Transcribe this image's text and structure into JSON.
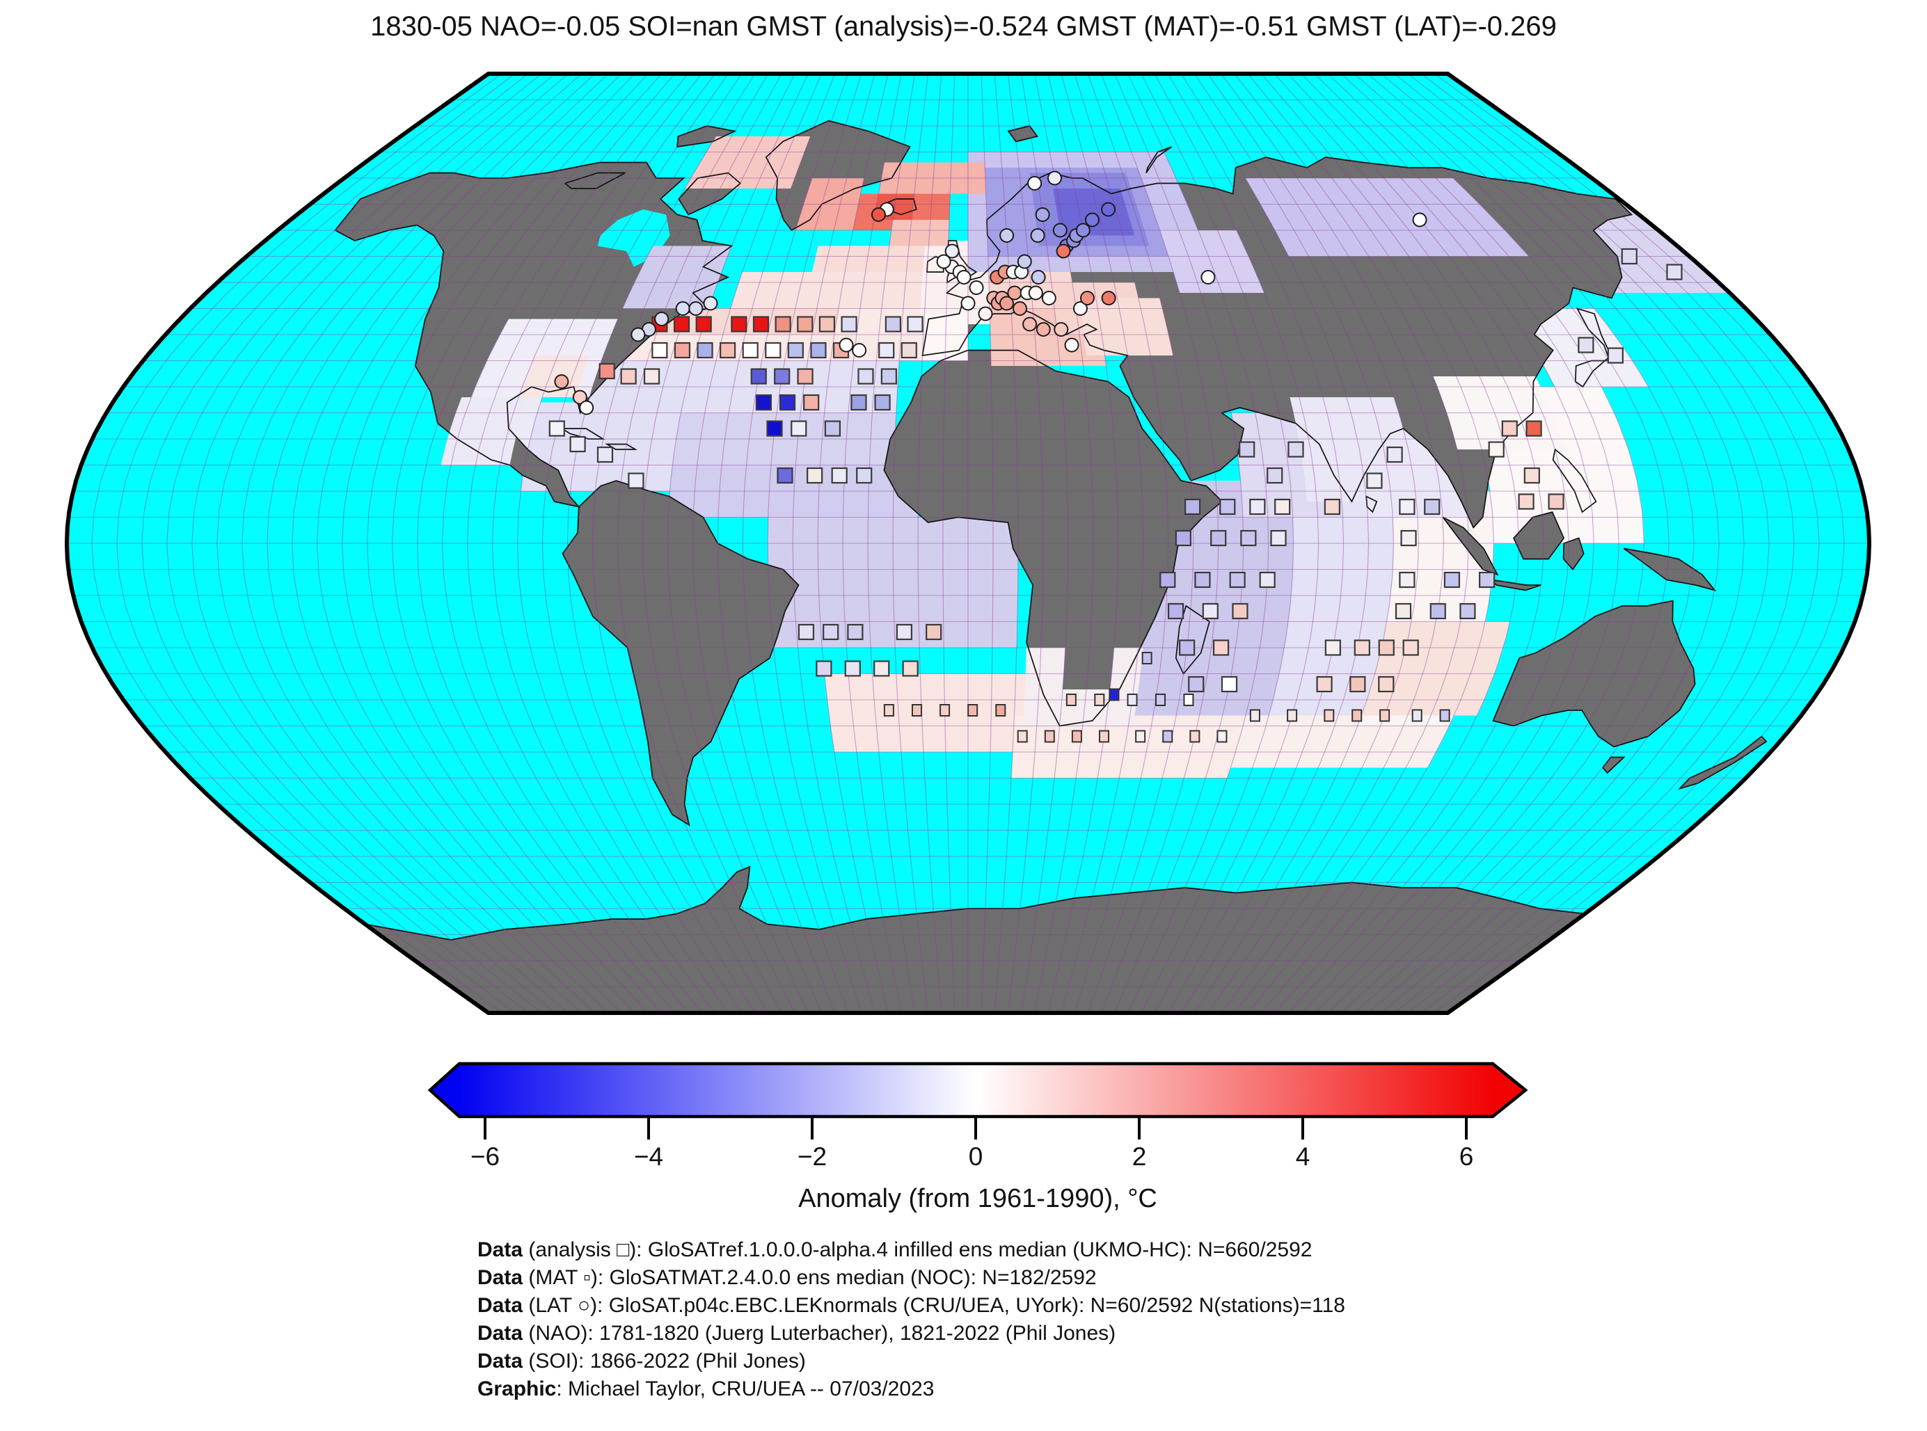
{
  "title": "1830-05 NAO=-0.05 SOI=nan GMST (analysis)=-0.524 GMST (MAT)=-0.51 GMST (LAT)=-0.269",
  "colorbar": {
    "label": "Anomaly (from 1961-1990), °C",
    "min": -6,
    "max": 6,
    "tick_labels": [
      "−6",
      "−4",
      "−2",
      "0",
      "2",
      "4",
      "6"
    ],
    "gradient": [
      "#0202f2",
      "#ffffff",
      "#f20202"
    ]
  },
  "credits": [
    {
      "bold": "Data",
      "rest": " (analysis □): GloSATref.1.0.0.0-alpha.4 infilled ens median (UKMO-HC): N=660/2592"
    },
    {
      "bold": "Data",
      "rest": " (MAT ▫): GloSATMAT.2.4.0.0 ens median (NOC): N=182/2592"
    },
    {
      "bold": "Data",
      "rest": " (LAT ○): GloSAT.p04c.EBC.LEKnormals (CRU/UEA, UYork): N=60/2592 N(stations)=118"
    },
    {
      "bold": "Data",
      "rest": " (NAO): 1781-1820 (Juerg Luterbacher), 1821-2022 (Phil Jones)"
    },
    {
      "bold": "Data",
      "rest": " (SOI): 1866-2022 (Phil Jones)"
    },
    {
      "bold": "Graphic",
      "rest": ": Michael Taylor, CRU/UEA -- 07/03/2023"
    }
  ],
  "map": {
    "projection": "robinson-approx",
    "grid_step_deg": 5,
    "ocean_color": "#00ffff",
    "land_color": "#6e6e6e",
    "grid_color": "#8c3c9a",
    "coast_color": "#111111",
    "outline_color": "#000000",
    "regions_ocean": [
      [
        -55,
        45,
        -10,
        52,
        "#f8e3e0"
      ],
      [
        -38,
        52,
        -10,
        57,
        "#f7dcd8"
      ],
      [
        -75,
        35,
        -10,
        45,
        "#f9e9e7"
      ],
      [
        -75,
        40,
        -30,
        45,
        "#f6d9d4"
      ],
      [
        -80,
        25,
        -15,
        35,
        "#e3e1f4"
      ],
      [
        -65,
        15,
        -15,
        25,
        "#d6d3f0"
      ],
      [
        -60,
        5,
        -10,
        15,
        "#d0cdee"
      ],
      [
        -40,
        -20,
        10,
        5,
        "#d2cfee"
      ],
      [
        -30,
        -40,
        20,
        -25,
        "#f9e6e2"
      ],
      [
        10,
        -45,
        60,
        -33,
        "#f9ece9"
      ],
      [
        60,
        -43,
        105,
        -33,
        "#f9efec"
      ],
      [
        -90,
        10,
        -60,
        27,
        "#e2e0f4"
      ],
      [
        -100,
        18,
        -90,
        31,
        "#eceaf7"
      ],
      [
        35,
        -33,
        65,
        12,
        "#cdc9ec"
      ],
      [
        65,
        -33,
        85,
        15,
        "#e4e2f5"
      ],
      [
        85,
        -35,
        105,
        10,
        "#faf4f3"
      ],
      [
        85,
        -33,
        110,
        -15,
        "#f8e2dc"
      ],
      [
        55,
        5,
        75,
        25,
        "#dedbf2"
      ],
      [
        80,
        5,
        100,
        22,
        "#eae8f7"
      ],
      [
        105,
        0,
        135,
        30,
        "#fcf8f8"
      ],
      [
        150,
        48,
        180,
        66,
        "#d9d5f1"
      ],
      [
        125,
        30,
        145,
        45,
        "#f1eff8"
      ]
    ],
    "regions_overlay": [
      [
        -11,
        42,
        20,
        58,
        "#faf0ef"
      ],
      [
        0,
        52,
        60,
        75,
        "#c9c5ee"
      ],
      [
        5,
        55,
        50,
        72,
        "#a5a1e6"
      ],
      [
        18,
        57,
        46,
        71,
        "#8b88e0"
      ],
      [
        24,
        59,
        43,
        68,
        "#6d68d6"
      ],
      [
        5,
        42,
        25,
        52,
        "#f7d8d3"
      ],
      [
        5,
        34,
        30,
        45,
        "#f5c8c0"
      ],
      [
        20,
        40,
        40,
        50,
        "#f7d5cf"
      ],
      [
        26,
        36,
        45,
        47,
        "#f8ded9"
      ],
      [
        -10,
        35,
        0,
        44,
        "#fdf7f6"
      ],
      [
        -105,
        28,
        -80,
        43,
        "#efedf8"
      ],
      [
        -95,
        28,
        -83,
        36,
        "#f7e6e2"
      ],
      [
        -107,
        15,
        -93,
        28,
        "#ece9f6"
      ],
      [
        80,
        55,
        140,
        70,
        "#cbc3ef"
      ],
      [
        50,
        48,
        70,
        60,
        "#d6cff2"
      ],
      [
        100,
        18,
        122,
        32,
        "#fbf6f6"
      ],
      [
        68,
        8,
        90,
        28,
        "#eae7f6"
      ],
      [
        12,
        -35,
        36,
        -20,
        "#f4eef0"
      ],
      [
        20,
        -28,
        30,
        -17,
        "#6e6e6e"
      ],
      [
        -80,
        45,
        -60,
        57,
        "#cfcbec"
      ],
      [
        -80,
        68,
        -50,
        78,
        "#f6c8c4"
      ],
      [
        -45,
        60,
        -30,
        70,
        "#f4a9a1"
      ],
      [
        -30,
        60,
        -20,
        67,
        "#ef7465"
      ],
      [
        -25,
        62,
        -15,
        67,
        "#ea5949"
      ],
      [
        -15,
        62,
        -5,
        67,
        "#ef7465"
      ],
      [
        -25,
        67,
        5,
        73,
        "#f4b3ab"
      ],
      [
        -20,
        57,
        -5,
        62,
        "#f6c3bb"
      ]
    ],
    "squares": [
      [
        -70,
        42,
        "#e81515"
      ],
      [
        -65,
        42,
        "#e81515"
      ],
      [
        -60,
        42,
        "#e81515"
      ],
      [
        -52,
        42,
        "#e81515"
      ],
      [
        -47,
        42,
        "#e81515"
      ],
      [
        -42,
        42,
        "#f09181"
      ],
      [
        -37,
        42,
        "#f3a897"
      ],
      [
        -32,
        42,
        "#f6c3b8"
      ],
      [
        -27,
        42,
        "#dedcf4"
      ],
      [
        -17,
        42,
        "#ccccee"
      ],
      [
        -12,
        42,
        "#e8e8f8"
      ],
      [
        -68,
        37,
        "#ffffff"
      ],
      [
        -63,
        37,
        "#f2a79e"
      ],
      [
        -58,
        37,
        "#aab0e8"
      ],
      [
        -53,
        37,
        "#f4bcb2"
      ],
      [
        -48,
        37,
        "#ffffff"
      ],
      [
        -43,
        37,
        "#fdfdff"
      ],
      [
        -38,
        37,
        "#b9c0ec"
      ],
      [
        -33,
        37,
        "#aab4e8"
      ],
      [
        -28,
        37,
        "#f2aea4"
      ],
      [
        -18,
        37,
        "#e9e9f9"
      ],
      [
        -13,
        37,
        "#f1dcda"
      ],
      [
        -78,
        33,
        "#f29286"
      ],
      [
        -73,
        32,
        "#f6cfc9"
      ],
      [
        -68,
        32,
        "#f6e8e6"
      ],
      [
        -45,
        32,
        "#5b5bd8"
      ],
      [
        -40,
        32,
        "#7b7be0"
      ],
      [
        -35,
        32,
        "#f3b3a8"
      ],
      [
        -22,
        32,
        "#dcdcf4"
      ],
      [
        -17,
        32,
        "#cacdf0"
      ],
      [
        -43,
        27,
        "#1414cc"
      ],
      [
        -38,
        27,
        "#2b2bd6"
      ],
      [
        -33,
        27,
        "#f4b2a6"
      ],
      [
        -23,
        27,
        "#9ba3e4"
      ],
      [
        -18,
        27,
        "#aab2e8"
      ],
      [
        -40,
        22,
        "#0f0fd0"
      ],
      [
        -35,
        22,
        "#ededf9"
      ],
      [
        -28,
        22,
        "#c2c6ee"
      ],
      [
        -37,
        13,
        "#6c6cde"
      ],
      [
        -31,
        13,
        "#f1ece4"
      ],
      [
        -26,
        13,
        "#ebebf8"
      ],
      [
        -21,
        13,
        "#d6daf2"
      ],
      [
        -85,
        22,
        "#f2f2fb"
      ],
      [
        -80,
        19,
        "#eaeaf8"
      ],
      [
        -74,
        17,
        "#e6e6f7"
      ],
      [
        -67,
        12,
        "#ebebf8"
      ],
      [
        45,
        7,
        "#b9b5ea"
      ],
      [
        52,
        7,
        "#c6c2ee"
      ],
      [
        58,
        7,
        "#eceaf8"
      ],
      [
        63,
        7,
        "#f3ece9"
      ],
      [
        73,
        7,
        "#f6d8d0"
      ],
      [
        88,
        7,
        "#f1eff9"
      ],
      [
        93,
        7,
        "#c9c9f0"
      ],
      [
        43,
        1,
        "#b3aee8"
      ],
      [
        50,
        1,
        "#c0bcec"
      ],
      [
        56,
        1,
        "#c9c5ee"
      ],
      [
        62,
        1,
        "#ece9f7"
      ],
      [
        88,
        1,
        "#f4f0f2"
      ],
      [
        40,
        -7,
        "#b5b0e9"
      ],
      [
        47,
        -7,
        "#bfbbec"
      ],
      [
        54,
        -7,
        "#c7c3ee"
      ],
      [
        60,
        -7,
        "#e9e6f6"
      ],
      [
        88,
        -7,
        "#f2eef3"
      ],
      [
        97,
        -7,
        "#c3c3ed"
      ],
      [
        104,
        -7,
        "#c9c9ee"
      ],
      [
        42,
        -13,
        "#b9b4ea"
      ],
      [
        49,
        -13,
        "#ece9f7"
      ],
      [
        55,
        -13,
        "#f3ccc3"
      ],
      [
        88,
        -13,
        "#f3ebe7"
      ],
      [
        95,
        -13,
        "#bfbfec"
      ],
      [
        101,
        -13,
        "#c6c6ee"
      ],
      [
        45,
        -20,
        "#c0bcec"
      ],
      [
        52,
        -20,
        "#f6d2ca"
      ],
      [
        75,
        -20,
        "#f4efec"
      ],
      [
        81,
        -20,
        "#f6d9d2"
      ],
      [
        86,
        -20,
        "#f4cdc4"
      ],
      [
        91,
        -20,
        "#f7ddd6"
      ],
      [
        48,
        -27,
        "#c7c3ee"
      ],
      [
        55,
        -27,
        "#ffffff"
      ],
      [
        75,
        -27,
        "#f6d7cf"
      ],
      [
        82,
        -27,
        "#f3c6bb"
      ],
      [
        88,
        -27,
        "#f7d9d2"
      ],
      [
        87,
        17,
        "#eae8f7"
      ],
      [
        82,
        12,
        "#efecf8"
      ],
      [
        62,
        13,
        "#d9d6f2"
      ],
      [
        57,
        18,
        "#d2cff0"
      ],
      [
        67,
        18,
        "#dbd8f2"
      ],
      [
        112,
        22,
        "#f6cfc6"
      ],
      [
        117,
        22,
        "#ee6450"
      ],
      [
        114,
        13,
        "#f8ded7"
      ],
      [
        118,
        8,
        "#f5cdc4"
      ],
      [
        112,
        8,
        "#f7d8d1"
      ],
      [
        108,
        18,
        "#fbf3f2"
      ],
      [
        137,
        38,
        "#e3e0f4"
      ],
      [
        142,
        36,
        "#e8e6f6"
      ],
      [
        -33,
        -17,
        "#e5e1f5"
      ],
      [
        -28,
        -17,
        "#d9d5f1"
      ],
      [
        -23,
        -17,
        "#d1cdef"
      ],
      [
        -13,
        -17,
        "#eae6f6"
      ],
      [
        -7,
        -17,
        "#f3c9bf"
      ],
      [
        -30,
        -24,
        "#dad6f1"
      ],
      [
        -24,
        -24,
        "#e7e3f5"
      ],
      [
        -18,
        -24,
        "#f2ebe9"
      ],
      [
        -12,
        -24,
        "#f6ddd6"
      ],
      [
        165,
        55,
        "#dcd8f2"
      ],
      [
        172,
        52,
        "#e4e0f4"
      ]
    ],
    "small_squares": [
      [
        -17,
        -32,
        "#f6d7ce"
      ],
      [
        -11,
        -32,
        "#f3c5ba"
      ],
      [
        -5,
        -32,
        "#f5cfc5"
      ],
      [
        1,
        -32,
        "#f1b9ac"
      ],
      [
        7,
        -32,
        "#efa99b"
      ],
      [
        12,
        -37,
        "#f8ddd5"
      ],
      [
        18,
        -37,
        "#f5c8bd"
      ],
      [
        24,
        -37,
        "#f3bcb0"
      ],
      [
        30,
        -37,
        "#f7d2ca"
      ],
      [
        38,
        -37,
        "#f5efed"
      ],
      [
        44,
        -37,
        "#c9c5ee"
      ],
      [
        50,
        -37,
        "#f6d8d1"
      ],
      [
        56,
        -37,
        "#f2eff7"
      ],
      [
        22,
        -30,
        "#f5cdc4"
      ],
      [
        28,
        -30,
        "#f7d8d1"
      ],
      [
        35,
        -30,
        "#eae7f6"
      ],
      [
        41,
        -30,
        "#c9c9ee"
      ],
      [
        47,
        -30,
        "#ffffff"
      ],
      [
        31,
        -29,
        "#2222dd"
      ],
      [
        37,
        -22,
        "#c5c1ed"
      ],
      [
        62,
        -33,
        "#efeceb"
      ],
      [
        70,
        -33,
        "#f3e7e2"
      ],
      [
        78,
        -33,
        "#f6d5cd"
      ],
      [
        84,
        -33,
        "#f2c3b7"
      ],
      [
        90,
        -33,
        "#f6d0c8"
      ],
      [
        97,
        -33,
        "#eae7f6"
      ],
      [
        103,
        -33,
        "#c9c9ee"
      ]
    ],
    "circles": [
      [
        -4,
        53,
        "#ffffff"
      ],
      [
        -2,
        52,
        "#ffffff"
      ],
      [
        -1,
        51,
        "#fefefe"
      ],
      [
        -4,
        56,
        "#eeeef8"
      ],
      [
        -6,
        54,
        "#ffffff"
      ],
      [
        2,
        49,
        "#ffffff"
      ],
      [
        0,
        46,
        "#ffffff"
      ],
      [
        4,
        44,
        "#fdf4f3"
      ],
      [
        6,
        47,
        "#f5b4a6"
      ],
      [
        7,
        46,
        "#f3a295"
      ],
      [
        8,
        47,
        "#f5ad9f"
      ],
      [
        9,
        46,
        "#f2a092"
      ],
      [
        7,
        51,
        "#ee8472"
      ],
      [
        9,
        52,
        "#f29b8b"
      ],
      [
        11,
        52,
        "#ffffff"
      ],
      [
        13,
        52,
        "#f4f4fc"
      ],
      [
        11,
        48,
        "#f5ab9c"
      ],
      [
        14,
        48,
        "#ffffff"
      ],
      [
        16,
        48,
        "#fdf6f5"
      ],
      [
        17,
        51,
        "#c9cdf0"
      ],
      [
        19,
        47,
        "#fefefe"
      ],
      [
        12,
        45,
        "#f3a79a"
      ],
      [
        14,
        42,
        "#f5bdb1"
      ],
      [
        17,
        41,
        "#f3b2a5"
      ],
      [
        21,
        41,
        "#f6c9c0"
      ],
      [
        23,
        38,
        "#ffffff"
      ],
      [
        26,
        45,
        "#fdfdff"
      ],
      [
        28,
        47,
        "#f19180"
      ],
      [
        33,
        47,
        "#ef7c68"
      ],
      [
        14,
        54,
        "#c9cdee"
      ],
      [
        10,
        59,
        "#c9cdf0"
      ],
      [
        18,
        59,
        "#b9bde9"
      ],
      [
        24,
        60,
        "#8a8ae0"
      ],
      [
        25,
        57,
        "#7d7dde"
      ],
      [
        27,
        58,
        "#8f8fe2"
      ],
      [
        24,
        56,
        "#f07463"
      ],
      [
        28,
        59,
        "#9a9ae4"
      ],
      [
        30,
        60,
        "#8c8ce0"
      ],
      [
        33,
        62,
        "#7676dc"
      ],
      [
        38,
        64,
        "#6a6ad8"
      ],
      [
        20,
        63,
        "#a9a9e8"
      ],
      [
        19,
        69,
        "#fbfbfd"
      ],
      [
        25,
        70,
        "#eaeaf8"
      ],
      [
        -70,
        43,
        "#dadcf3"
      ],
      [
        -72,
        41,
        "#d6d8f1"
      ],
      [
        -66,
        45,
        "#dcdef3"
      ],
      [
        -63,
        45,
        "#d9dbf2"
      ],
      [
        -60,
        46,
        "#e5e7f6"
      ],
      [
        -74,
        40,
        "#e2e4f5"
      ],
      [
        -82,
        28,
        "#f6d0ca"
      ],
      [
        -80,
        26,
        "#fdf7f6"
      ],
      [
        -87,
        31,
        "#f3b3a7"
      ],
      [
        -27,
        38,
        "#ffffff"
      ],
      [
        -24,
        37,
        "#fdfdfd"
      ],
      [
        120,
        62,
        "#fdfdff"
      ],
      [
        58,
        51,
        "#fbfbfe"
      ],
      [
        -22,
        64,
        "#ffffff"
      ],
      [
        -24,
        63,
        "#ee5544"
      ]
    ]
  }
}
